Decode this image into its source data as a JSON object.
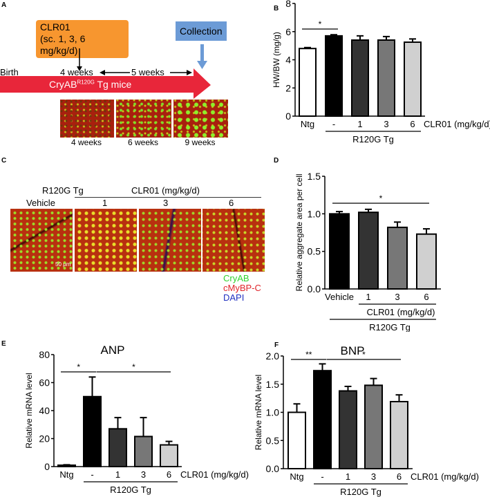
{
  "panels": {
    "A": {
      "label": "A",
      "treatment_box": {
        "line1": "CLR01",
        "line2": "(sc. 1, 3, 6 mg/kg/d)"
      },
      "collection_box": "Collection",
      "timeline": {
        "birth": "Birth",
        "start": "4 weeks",
        "span": "5 weeks",
        "arrow_label": "CryAB",
        "arrow_sup": "R120G",
        "arrow_suffix": " Tg mice"
      },
      "images": [
        {
          "caption": "4 weeks"
        },
        {
          "caption": "6 weeks"
        },
        {
          "caption": "9 weeks"
        }
      ],
      "colors": {
        "arrow": "#e8263a",
        "treatment": "#f7962f",
        "collection": "#6c9bd6",
        "collection_arrow": "#6c9bd6"
      }
    },
    "B": {
      "label": "B"
    },
    "C": {
      "label": "C",
      "group_label": "R120G Tg",
      "treatment_label": "CLR01 (mg/kg/d)",
      "columns": [
        "Vehicle",
        "1",
        "3",
        "6"
      ],
      "scale_bar": "50 μm",
      "legend": [
        {
          "text": "CryAB",
          "color": "#2fd32f"
        },
        {
          "text": "cMyBP-C",
          "color": "#e0242a"
        },
        {
          "text": "DAPI",
          "color": "#1f2fc0"
        }
      ]
    },
    "D": {
      "label": "D"
    },
    "E": {
      "label": "E"
    },
    "F": {
      "label": "F"
    }
  },
  "chart_data": [
    {
      "panel": "B",
      "type": "bar",
      "title": "",
      "categories": [
        "Ntg",
        "-",
        "1",
        "3",
        "6"
      ],
      "values": [
        4.8,
        5.7,
        5.4,
        5.4,
        5.25
      ],
      "errors": [
        4.87,
        5.78,
        5.7,
        5.65,
        5.48
      ],
      "bar_colors": [
        "#ffffff",
        "#000000",
        "#333333",
        "#777777",
        "#d0d0d0"
      ],
      "ylabel": "HW/BW (mg/g)",
      "ylim": [
        0,
        8
      ],
      "yticks": [
        "0",
        "2",
        "4",
        "6",
        "8"
      ],
      "x_suffix": "CLR01 (mg/kg/d)",
      "group_label": "R120G Tg",
      "significance": [
        {
          "from": 0,
          "to": 1,
          "mark": "*"
        }
      ]
    },
    {
      "panel": "D",
      "type": "bar",
      "title": "",
      "categories": [
        "Vehicle",
        "1",
        "3",
        "6"
      ],
      "values": [
        1.0,
        1.02,
        0.82,
        0.73
      ],
      "errors": [
        1.03,
        1.06,
        0.89,
        0.8
      ],
      "bar_colors": [
        "#000000",
        "#333333",
        "#777777",
        "#d0d0d0"
      ],
      "ylabel": "Relative aggregate area per cell",
      "ylim": [
        0,
        1.5
      ],
      "yticks": [
        "0.0",
        "0.5",
        "1.0",
        "1.5"
      ],
      "sub_label": "CLR01 (mg/kg/d)",
      "group_label": "R120G Tg",
      "significance": [
        {
          "from": 0,
          "to": 3,
          "mark": "*"
        }
      ]
    },
    {
      "panel": "E",
      "type": "bar",
      "title": "ANP",
      "categories": [
        "Ntg",
        "-",
        "1",
        "3",
        "6"
      ],
      "values": [
        1,
        50,
        27,
        21.5,
        15.5
      ],
      "errors": [
        1.3,
        64,
        35,
        35,
        18
      ],
      "bar_colors": [
        "#ffffff",
        "#000000",
        "#333333",
        "#777777",
        "#d0d0d0"
      ],
      "ylabel": "Relative mRNA level",
      "ylim": [
        0,
        80
      ],
      "yticks": [
        "0",
        "20",
        "40",
        "60",
        "80"
      ],
      "x_suffix": "CLR01 (mg/kg/d)",
      "group_label": "R120G Tg",
      "significance": [
        {
          "from": 0,
          "to": 1,
          "mark": "*"
        },
        {
          "from": 1,
          "to": 4,
          "mark": "*"
        }
      ]
    },
    {
      "panel": "F",
      "type": "bar",
      "title": "BNP",
      "categories": [
        "Ntg",
        "-",
        "1",
        "3",
        "6"
      ],
      "values": [
        1.0,
        1.74,
        1.38,
        1.48,
        1.19
      ],
      "errors": [
        1.15,
        1.86,
        1.46,
        1.6,
        1.31
      ],
      "bar_colors": [
        "#ffffff",
        "#000000",
        "#333333",
        "#777777",
        "#d0d0d0"
      ],
      "ylabel": "Relative mRNA level",
      "ylim": [
        0,
        2.0
      ],
      "yticks": [
        "0.0",
        "0.5",
        "1.0",
        "1.5",
        "2.0"
      ],
      "x_suffix": "CLR01 (mg/kg/d)",
      "group_label": "R120G Tg",
      "significance": [
        {
          "from": 0,
          "to": 1,
          "mark": "**"
        },
        {
          "from": 1,
          "to": 4,
          "mark": "*"
        }
      ]
    }
  ]
}
